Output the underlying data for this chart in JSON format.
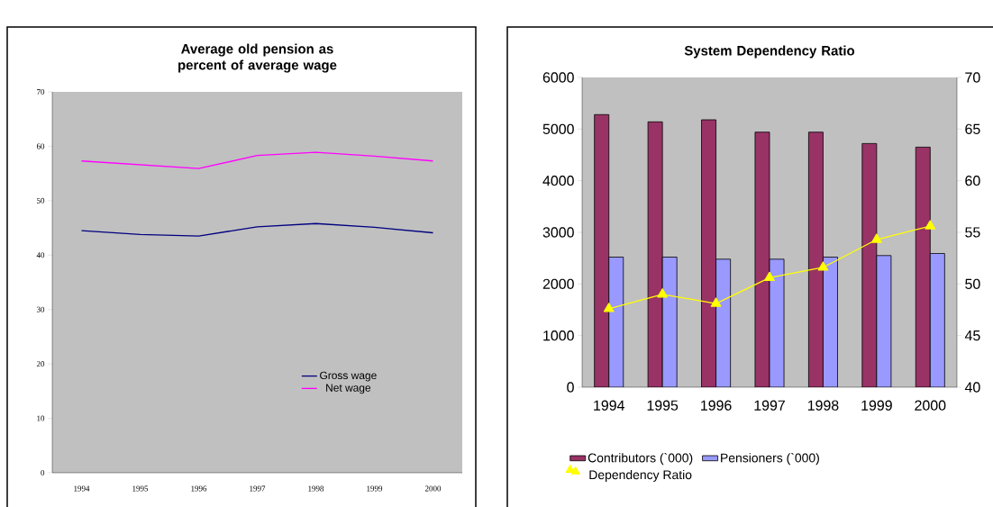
{
  "chart_data": [
    {
      "type": "line",
      "title": "Average old pension as percent of average wage",
      "categories": [
        "1994",
        "1995",
        "1996",
        "1997",
        "1998",
        "1999",
        "2000"
      ],
      "series": [
        {
          "name": "Gross wage",
          "color": "#000080",
          "values": [
            44.5,
            43.8,
            43.5,
            45.2,
            45.8,
            45.1,
            44.1
          ]
        },
        {
          "name": "Net wage",
          "color": "#ff00ff",
          "values": [
            57.3,
            56.6,
            55.9,
            58.3,
            58.9,
            58.2,
            57.3
          ]
        }
      ],
      "ylim": [
        0,
        70
      ],
      "yticks": [
        0,
        10,
        20,
        30,
        40,
        50,
        60,
        70
      ],
      "legend": "bottom right"
    },
    {
      "type": "bar",
      "title": "System Dependency Ratio",
      "categories": [
        "1994",
        "1995",
        "1996",
        "1997",
        "1998",
        "1999",
        "2000"
      ],
      "series": [
        {
          "name": "Contributors (`000)",
          "color": "#993366",
          "values": [
            5280,
            5140,
            5180,
            4940,
            4940,
            4720,
            4650
          ]
        },
        {
          "name": "Pensioners (`000)",
          "color": "#9999ff",
          "values": [
            2520,
            2520,
            2480,
            2480,
            2520,
            2550,
            2590
          ]
        },
        {
          "name": "Dependency Ratio",
          "type": "line",
          "axis": "y2",
          "color": "#ffff00",
          "marker": "triangle",
          "values": [
            47.6,
            49.0,
            48.1,
            50.6,
            51.6,
            54.3,
            55.6
          ]
        }
      ],
      "ylim": [
        0,
        6000
      ],
      "yticks": [
        0,
        1000,
        2000,
        3000,
        4000,
        5000,
        6000
      ],
      "y2lim": [
        40,
        70
      ],
      "y2ticks": [
        40,
        45,
        50,
        55,
        60,
        65,
        70
      ],
      "legend": "bottom"
    }
  ]
}
